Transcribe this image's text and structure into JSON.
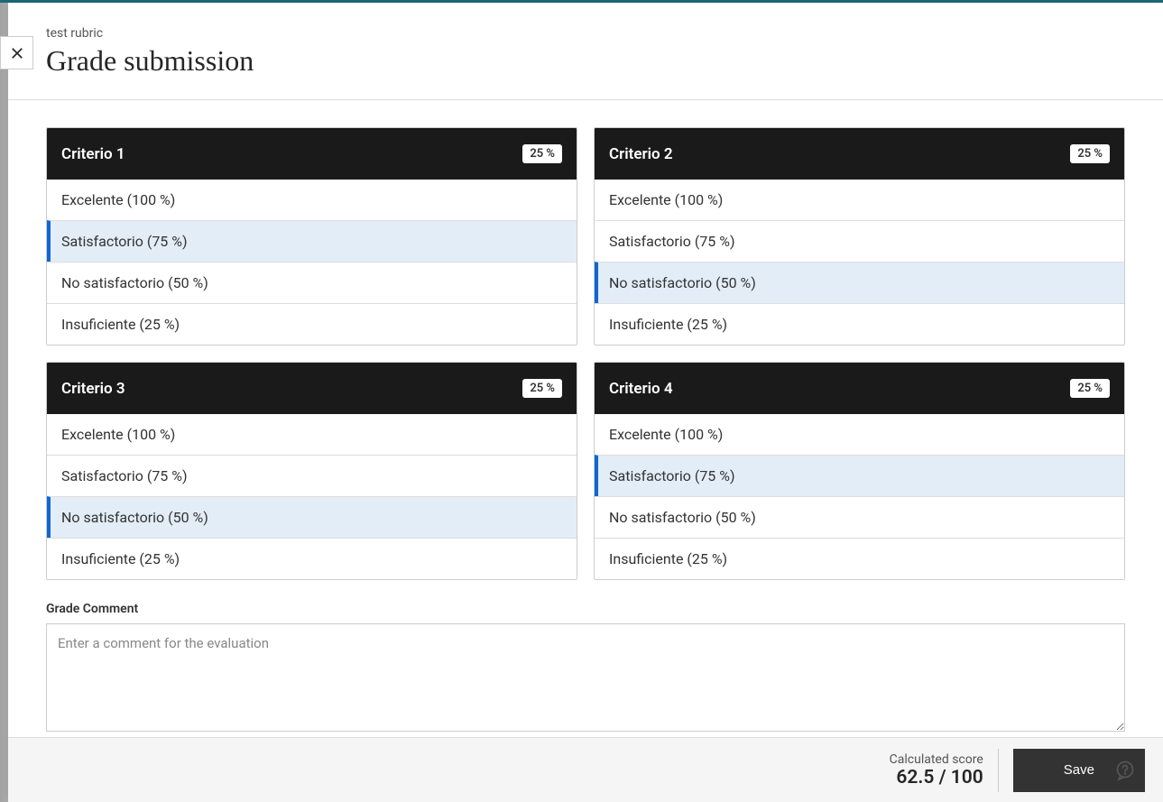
{
  "colors": {
    "topbar": "#1a6a7a",
    "criterion_header_bg": "#1a1a1a",
    "selected_bg": "#e3edf7",
    "selected_border": "#1066d6",
    "footer_bg": "#f5f5f5",
    "save_btn_bg": "#333333",
    "border": "#cccccc"
  },
  "header": {
    "subtitle": "test rubric",
    "title": "Grade submission"
  },
  "criteria": [
    {
      "title": "Criterio 1",
      "weight": "25 %",
      "selected_index": 1,
      "levels": [
        "Excelente (100 %)",
        "Satisfactorio (75 %)",
        "No satisfactorio (50 %)",
        "Insuficiente (25 %)"
      ]
    },
    {
      "title": "Criterio 2",
      "weight": "25 %",
      "selected_index": 2,
      "levels": [
        "Excelente (100 %)",
        "Satisfactorio (75 %)",
        "No satisfactorio (50 %)",
        "Insuficiente (25 %)"
      ]
    },
    {
      "title": "Criterio 3",
      "weight": "25 %",
      "selected_index": 2,
      "levels": [
        "Excelente (100 %)",
        "Satisfactorio (75 %)",
        "No satisfactorio (50 %)",
        "Insuficiente (25 %)"
      ]
    },
    {
      "title": "Criterio 4",
      "weight": "25 %",
      "selected_index": 1,
      "levels": [
        "Excelente (100 %)",
        "Satisfactorio (75 %)",
        "No satisfactorio (50 %)",
        "Insuficiente (25 %)"
      ]
    }
  ],
  "comment": {
    "label": "Grade Comment",
    "placeholder": "Enter a comment for the evaluation",
    "value": ""
  },
  "footer": {
    "score_label": "Calculated score",
    "score_value": "62.5 / 100",
    "save_label": "Save"
  }
}
